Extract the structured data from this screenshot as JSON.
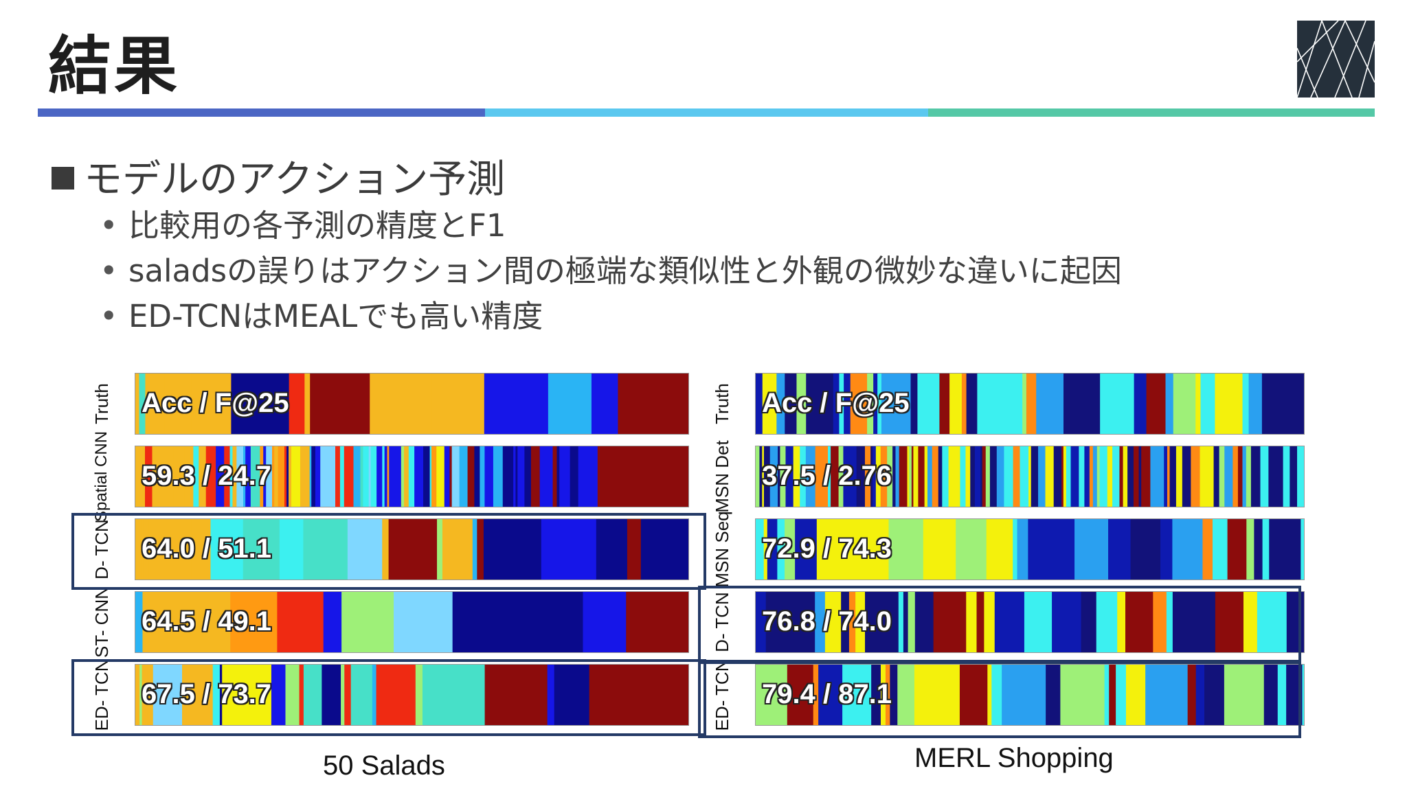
{
  "slide": {
    "title": "結果",
    "heading": "モデルのアクション予測",
    "bullets": [
      "比較用の各予測の精度とF1",
      "saladsの誤りはアクション間の極端な類似性と外観の微妙な違いに起因",
      "ED-TCNはMEALでも高い精度"
    ],
    "stripe_colors": [
      "#4b66c4",
      "#5bc8ef",
      "#54c8a6"
    ]
  },
  "figure": {
    "left_panel": {
      "caption": "50 Salads",
      "rows": [
        {
          "label": "Truth",
          "score": "Acc / F@25"
        },
        {
          "label": "Spatial CNN",
          "score": "59.3 / 24.7"
        },
        {
          "label": "D- TCN",
          "score": "64.0 / 51.1"
        },
        {
          "label": "ST- CNN",
          "score": "64.5 / 49.1"
        },
        {
          "label": "ED- TCN",
          "score": "67.5 / 73.7"
        }
      ]
    },
    "right_panel": {
      "caption": "MERL Shopping",
      "rows": [
        {
          "label": "Truth",
          "score": "Acc / F@25"
        },
        {
          "label": "MSN Det",
          "score": "37.5 / 2.76"
        },
        {
          "label": "MSN Seq",
          "score": "72.9 / 74.3"
        },
        {
          "label": "D- TCN",
          "score": "76.8 / 74.0"
        },
        {
          "label": "ED- TCN",
          "score": "79.4 / 87.1"
        }
      ]
    }
  }
}
